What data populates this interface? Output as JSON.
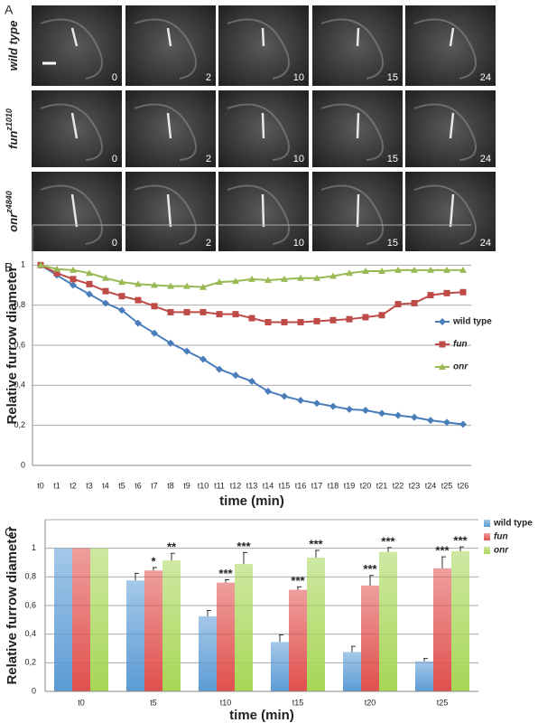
{
  "panel_a": {
    "label": "A",
    "rows": [
      {
        "name": "wild type"
      },
      {
        "name": "fun",
        "allele": "z1010"
      },
      {
        "name": "onr",
        "allele": "z4840"
      }
    ],
    "times": [
      0,
      2,
      10,
      15,
      24
    ]
  },
  "chart_data": [
    {
      "type": "line",
      "panel_label": "B",
      "ylabel": "Relative furrow diameter",
      "xlabel": "time (min)",
      "categories": [
        "t0",
        "t1",
        "t2",
        "t3",
        "t4",
        "t5",
        "t6",
        "t7",
        "t8",
        "t9",
        "t10",
        "t11",
        "t12",
        "t13",
        "t14",
        "t15",
        "t16",
        "t17",
        "t18",
        "t19",
        "t20",
        "t21",
        "t22",
        "t23",
        "t24",
        "t25",
        "t26"
      ],
      "ylim": [
        0,
        1.2
      ],
      "yticks": [
        0,
        {
          "value": 0.2,
          "label": "0,2"
        },
        {
          "value": 0.4,
          "label": "0,4"
        },
        {
          "value": 0.6,
          "label": "0,6"
        },
        {
          "value": 0.8,
          "label": "0,8"
        },
        1
      ],
      "grid": true,
      "legend": "right",
      "series": [
        {
          "name": "wild type",
          "color": "#4a7ebb",
          "marker": "diamond",
          "values": [
            1,
            0.95,
            0.9,
            0.855,
            0.81,
            0.775,
            0.71,
            0.66,
            0.61,
            0.57,
            0.53,
            0.48,
            0.45,
            0.42,
            0.37,
            0.345,
            0.325,
            0.31,
            0.295,
            0.28,
            0.275,
            0.26,
            0.25,
            0.24,
            0.225,
            0.215,
            0.205
          ]
        },
        {
          "name": "fun",
          "color": "#be4b48",
          "marker": "square",
          "values": [
            1,
            0.96,
            0.93,
            0.905,
            0.87,
            0.845,
            0.825,
            0.795,
            0.765,
            0.765,
            0.765,
            0.755,
            0.755,
            0.735,
            0.715,
            0.715,
            0.715,
            0.72,
            0.725,
            0.73,
            0.74,
            0.75,
            0.805,
            0.81,
            0.85,
            0.86,
            0.865
          ]
        },
        {
          "name": "onr",
          "color": "#98b954",
          "marker": "triangle",
          "values": [
            1,
            0.98,
            0.975,
            0.96,
            0.935,
            0.915,
            0.905,
            0.9,
            0.895,
            0.895,
            0.89,
            0.915,
            0.92,
            0.93,
            0.925,
            0.93,
            0.935,
            0.935,
            0.945,
            0.96,
            0.97,
            0.97,
            0.975,
            0.975,
            0.975,
            0.975,
            0.975
          ]
        }
      ]
    },
    {
      "type": "bar",
      "panel_label": "C",
      "ylabel": "Relative furrow diameter",
      "xlabel": "time (min)",
      "categories": [
        "t0",
        "t5",
        "t10",
        "t15",
        "t20",
        "t25"
      ],
      "ylim": [
        0,
        1.2
      ],
      "yticks": [
        0,
        {
          "value": 0.2,
          "label": "0,2"
        },
        {
          "value": 0.4,
          "label": "0,4"
        },
        {
          "value": 0.6,
          "label": "0,6"
        },
        {
          "value": 0.8,
          "label": "0,8"
        },
        1
      ],
      "grid": true,
      "legend": "top-right",
      "series": [
        {
          "name": "wild type",
          "color": "#5b9bd5",
          "values": [
            1,
            0.775,
            0.525,
            0.345,
            0.275,
            0.21
          ],
          "errors": [
            0,
            0.05,
            0.04,
            0.05,
            0.04,
            0.02
          ],
          "annotations": [
            null,
            null,
            null,
            null,
            null,
            null
          ]
        },
        {
          "name": "fun",
          "color": "#e0504d",
          "values": [
            1,
            0.845,
            0.76,
            0.71,
            0.74,
            0.86
          ],
          "errors": [
            0,
            0.02,
            0.02,
            0.02,
            0.07,
            0.08
          ],
          "annotations": [
            null,
            "*",
            "***",
            "***",
            "***",
            "***"
          ]
        },
        {
          "name": "onr",
          "color": "#a6d656",
          "values": [
            1,
            0.915,
            0.89,
            0.935,
            0.975,
            0.98
          ],
          "errors": [
            0,
            0.05,
            0.08,
            0.05,
            0.03,
            0.03
          ],
          "annotations": [
            null,
            "**",
            "***",
            "***",
            "***",
            "***"
          ]
        }
      ]
    }
  ]
}
